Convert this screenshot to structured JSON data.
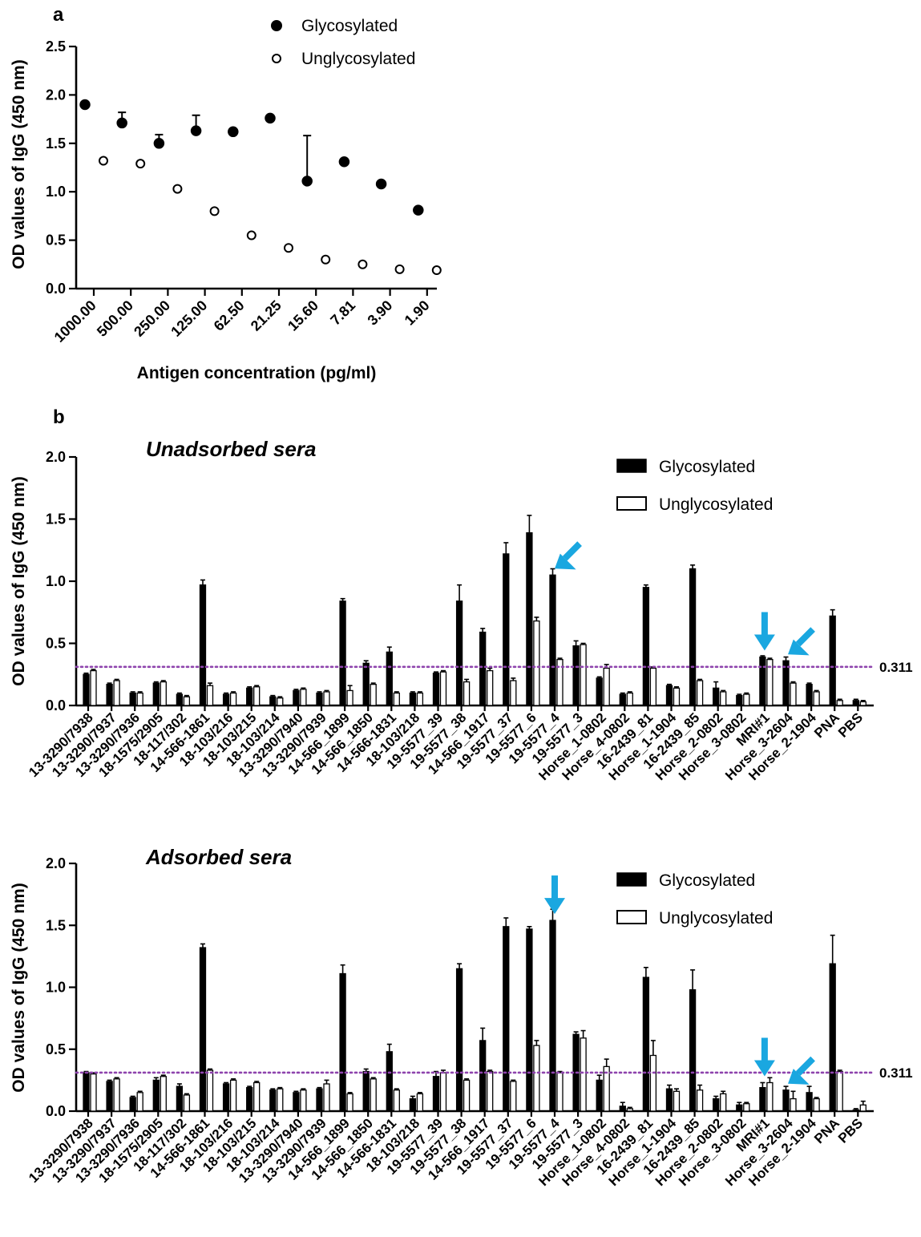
{
  "figure": {
    "panel_a_label": "a",
    "panel_b_label": "b"
  },
  "colors": {
    "glycosylated": "#000000",
    "unglycosylated": "#ffffff",
    "reference_line": "#8e44ad",
    "arrow": "#1aa7e0"
  },
  "chart_data": [
    {
      "type": "scatter",
      "panel": "a",
      "title": "",
      "xlabel": "Antigen concentration (pg/ml)",
      "ylabel": "OD values of IgG (450 nm)",
      "ylim": [
        0,
        2.5
      ],
      "yticks": [
        "0.0",
        "0.5",
        "1.0",
        "1.5",
        "2.0",
        "2.5"
      ],
      "categories": [
        "1000.00",
        "500.00",
        "250.00",
        "125.00",
        "62.50",
        "21.25",
        "15.60",
        "7.81",
        "3.90",
        "1.90"
      ],
      "legend": {
        "placement": "top-right"
      },
      "series": [
        {
          "name": "Glycosylated",
          "values": [
            1.9,
            1.71,
            1.5,
            1.63,
            1.62,
            1.76,
            1.11,
            1.31,
            1.08,
            0.81
          ],
          "errors": [
            0,
            0.11,
            0.09,
            0.16,
            0,
            0,
            0.47,
            0,
            0,
            0
          ]
        },
        {
          "name": "Unglycosylated",
          "values": [
            1.32,
            1.29,
            1.03,
            0.8,
            0.55,
            0.42,
            0.3,
            0.25,
            0.2,
            0.19
          ],
          "errors": [
            0,
            0,
            0,
            0,
            0,
            0,
            0,
            0,
            0,
            0
          ]
        }
      ]
    },
    {
      "type": "bar",
      "panel": "b-top",
      "title": "Unadsorbed sera",
      "xlabel": "",
      "ylabel": "OD values of IgG (450 nm)",
      "ylim": [
        0,
        2.0
      ],
      "yticks": [
        "0.0",
        "0.5",
        "1.0",
        "1.5",
        "2.0"
      ],
      "reference_line": {
        "value": 0.311,
        "label": "0.311"
      },
      "legend": {
        "placement": "top-right"
      },
      "categories": [
        "13-3290/7938",
        "13-3290/7937",
        "13-3290/7936",
        "18-1575/2905",
        "18-117/302",
        "14-566-1861",
        "18-103/216",
        "18-103/215",
        "18-103/214",
        "13-3290/7940",
        "13-3290/7939",
        "14-566_1899",
        "14-566_1850",
        "14-566-1831",
        "18-103/218",
        "19-5577_39",
        "19-5577_38",
        "14-566_1917",
        "19-5577_37",
        "19-5577_6",
        "19-5577_4",
        "19-5577_3",
        "Horse_1-0802",
        "Horse_4-0802",
        "16-2439_81",
        "Horse_1-1904",
        "16-2439_85",
        "Horse_2-0802",
        "Horse_3-0802",
        "MRI#1",
        "Horse_3-2604",
        "Horse_2-1904",
        "PNA",
        "PBS"
      ],
      "series": [
        {
          "name": "Glycosylated",
          "values": [
            0.25,
            0.17,
            0.1,
            0.18,
            0.09,
            0.97,
            0.09,
            0.14,
            0.07,
            0.12,
            0.1,
            0.84,
            0.34,
            0.43,
            0.1,
            0.26,
            0.84,
            0.59,
            1.22,
            1.39,
            1.05,
            0.48,
            0.22,
            0.09,
            0.95,
            0.16,
            1.1,
            0.14,
            0.08,
            0.39,
            0.36,
            0.17,
            0.72,
            0.04
          ],
          "errors": [
            0.01,
            0.01,
            0.01,
            0.01,
            0.01,
            0.04,
            0.01,
            0.01,
            0.01,
            0.01,
            0.01,
            0.02,
            0.02,
            0.04,
            0.01,
            0.01,
            0.13,
            0.03,
            0.09,
            0.14,
            0.05,
            0.04,
            0.01,
            0.01,
            0.02,
            0.01,
            0.03,
            0.05,
            0.01,
            0.01,
            0.03,
            0.01,
            0.05,
            0.01
          ]
        },
        {
          "name": "Unglycosylated",
          "values": [
            0.28,
            0.2,
            0.1,
            0.19,
            0.07,
            0.16,
            0.1,
            0.15,
            0.06,
            0.13,
            0.11,
            0.12,
            0.17,
            0.1,
            0.1,
            0.27,
            0.19,
            0.28,
            0.2,
            0.68,
            0.37,
            0.49,
            0.3,
            0.1,
            0.3,
            0.14,
            0.2,
            0.11,
            0.09,
            0.37,
            0.18,
            0.11,
            0.04,
            0.03
          ],
          "errors": [
            0.01,
            0.01,
            0.01,
            0.01,
            0.01,
            0.02,
            0.01,
            0.01,
            0.01,
            0.01,
            0.01,
            0.04,
            0.01,
            0.01,
            0.01,
            0.01,
            0.02,
            0.02,
            0.02,
            0.03,
            0.01,
            0.01,
            0.03,
            0.01,
            0.01,
            0.01,
            0.01,
            0.01,
            0.01,
            0.01,
            0.01,
            0.01,
            0.01,
            0.01
          ]
        }
      ],
      "arrows_at": [
        "19-5577_4",
        "MRI#1",
        "Horse_3-2604"
      ]
    },
    {
      "type": "bar",
      "panel": "b-bottom",
      "title": "Adsorbed sera",
      "xlabel": "",
      "ylabel": "OD values of IgG (450 nm)",
      "ylim": [
        0,
        2.0
      ],
      "yticks": [
        "0.0",
        "0.5",
        "1.0",
        "1.5",
        "2.0"
      ],
      "reference_line": {
        "value": 0.311,
        "label": "0.311"
      },
      "legend": {
        "placement": "top-right"
      },
      "categories": [
        "13-3290/7938",
        "13-3290/7937",
        "13-3290/7936",
        "18-1575/2905",
        "18-117/302",
        "14-566-1861",
        "18-103/216",
        "18-103/215",
        "18-103/214",
        "13-3290/7940",
        "13-3290/7939",
        "14-566_1899",
        "14-566_1850",
        "14-566-1831",
        "18-103/218",
        "19-5577_39",
        "19-5577_38",
        "14-566_1917",
        "19-5577_37",
        "19-5577_6",
        "19-5577_4",
        "19-5577_3",
        "Horse_1-0802",
        "Horse_4-0802",
        "16-2439_81",
        "Horse_1-1904",
        "16-2439_85",
        "Horse_2-0802",
        "Horse_3-0802",
        "MRI#1",
        "Horse_3-2604",
        "Horse_2-1904",
        "PNA",
        "PBS"
      ],
      "series": [
        {
          "name": "Glycosylated",
          "values": [
            0.31,
            0.24,
            0.11,
            0.25,
            0.2,
            1.32,
            0.22,
            0.19,
            0.17,
            0.15,
            0.18,
            1.11,
            0.32,
            0.48,
            0.1,
            0.28,
            1.15,
            0.57,
            1.49,
            1.47,
            1.54,
            0.62,
            0.25,
            0.04,
            1.08,
            0.18,
            0.98,
            0.1,
            0.05,
            0.19,
            0.17,
            0.15,
            1.19,
            0.01
          ],
          "errors": [
            0.01,
            0.01,
            0.01,
            0.02,
            0.02,
            0.03,
            0.01,
            0.01,
            0.01,
            0.01,
            0.01,
            0.07,
            0.02,
            0.06,
            0.02,
            0.04,
            0.04,
            0.1,
            0.07,
            0.02,
            0.09,
            0.02,
            0.04,
            0.03,
            0.08,
            0.03,
            0.16,
            0.02,
            0.02,
            0.04,
            0.03,
            0.05,
            0.23,
            0.01
          ]
        },
        {
          "name": "Unglycosylated",
          "values": [
            0.3,
            0.26,
            0.15,
            0.28,
            0.13,
            0.33,
            0.25,
            0.23,
            0.18,
            0.17,
            0.22,
            0.14,
            0.26,
            0.17,
            0.14,
            0.31,
            0.25,
            0.32,
            0.24,
            0.53,
            0.31,
            0.59,
            0.36,
            0.02,
            0.45,
            0.16,
            0.17,
            0.14,
            0.06,
            0.23,
            0.1,
            0.1,
            0.32,
            0.05
          ],
          "errors": [
            0.01,
            0.01,
            0.01,
            0.01,
            0.01,
            0.01,
            0.01,
            0.01,
            0.01,
            0.01,
            0.03,
            0.01,
            0.01,
            0.01,
            0.01,
            0.02,
            0.01,
            0.01,
            0.01,
            0.04,
            0.01,
            0.06,
            0.06,
            0.01,
            0.12,
            0.02,
            0.04,
            0.02,
            0.01,
            0.04,
            0.06,
            0.01,
            0.01,
            0.03
          ]
        }
      ],
      "arrows_at": [
        "19-5577_4",
        "MRI#1",
        "Horse_3-2604"
      ]
    }
  ]
}
